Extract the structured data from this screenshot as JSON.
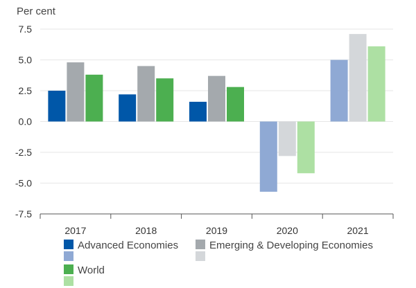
{
  "chart_data": {
    "type": "bar",
    "title": "",
    "ylabel": "Per cent",
    "xlabel": "",
    "ylim": [
      -7.5,
      7.5
    ],
    "yticks": [
      7.5,
      5.0,
      2.5,
      0.0,
      -2.5,
      -5.0,
      -7.5
    ],
    "ytick_labels": [
      "7.5",
      "5.0",
      "2.5",
      "0.0",
      "-2.5",
      "-5.0",
      "-7.5"
    ],
    "categories": [
      "2017",
      "2018",
      "2019",
      "2020",
      "2021"
    ],
    "forecast_from": "2020",
    "series": [
      {
        "name": "Advanced Economies",
        "color": "#0057a8",
        "light_color": "#8fa9d4",
        "values": [
          2.5,
          2.2,
          1.6,
          -5.7,
          5.0
        ]
      },
      {
        "name": "Emerging & Developing Economies",
        "color": "#a4a9ad",
        "light_color": "#d4d7da",
        "values": [
          4.8,
          4.5,
          3.7,
          -2.8,
          7.1
        ]
      },
      {
        "name": "World",
        "color": "#4caf50",
        "light_color": "#ade0a3",
        "values": [
          3.8,
          3.5,
          2.8,
          -4.2,
          6.1
        ]
      }
    ],
    "legend_position": "bottom"
  }
}
